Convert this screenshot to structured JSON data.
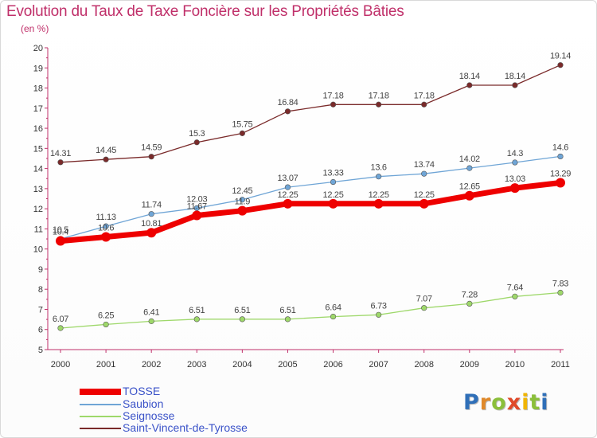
{
  "header": {
    "title": "Evolution du Taux de Taxe Foncière sur les Propriétés Bâties",
    "unit": "(en %)"
  },
  "logo": {
    "text": "Proxiti",
    "letter_colors": [
      "#2f6fb8",
      "#e0892a",
      "#8bbf3a",
      "#e04a2a",
      "#f0b400",
      "#8bbf3a",
      "#2f6fb8"
    ]
  },
  "chart_data": {
    "type": "line",
    "x": [
      "2000",
      "2001",
      "2002",
      "2003",
      "2004",
      "2005",
      "2006",
      "2007",
      "2008",
      "2009",
      "2010",
      "2011"
    ],
    "ylim": [
      5,
      20
    ],
    "yticks": [
      "5",
      "6",
      "7",
      "8",
      "9",
      "10",
      "11",
      "12",
      "13",
      "14",
      "15",
      "16",
      "17",
      "18",
      "19",
      "20"
    ],
    "grid": false,
    "legend_position": "bottom-left",
    "series": [
      {
        "name": "Saint-Vincent-de-Tyrosse",
        "color": "#7a2a2a",
        "values": [
          14.31,
          14.45,
          14.59,
          15.3,
          15.75,
          16.84,
          17.18,
          17.18,
          17.18,
          18.14,
          18.14,
          19.14
        ],
        "labels": [
          "14.31",
          "14.45",
          "14.59",
          "15.3",
          "15.75",
          "16.84",
          "17.18",
          "17.18",
          "17.18",
          "18.14",
          "18.14",
          "19.14"
        ]
      },
      {
        "name": "Saubion",
        "color": "#6fa5d6",
        "values": [
          10.5,
          11.13,
          11.74,
          12.03,
          12.45,
          13.07,
          13.33,
          13.6,
          13.74,
          14.02,
          14.3,
          14.6
        ],
        "labels": [
          "10.5",
          "11.13",
          "11.74",
          "12.03",
          "12.45",
          "13.07",
          "13.33",
          "13.6",
          "13.74",
          "14.02",
          "14.3",
          "14.6"
        ]
      },
      {
        "name": "Seignosse",
        "color": "#9ed86a",
        "values": [
          6.07,
          6.25,
          6.41,
          6.51,
          6.51,
          6.51,
          6.64,
          6.73,
          7.07,
          7.28,
          7.64,
          7.83
        ],
        "labels": [
          "6.07",
          "6.25",
          "6.41",
          "6.51",
          "6.51",
          "6.51",
          "6.64",
          "6.73",
          "7.07",
          "7.28",
          "7.64",
          "7.83"
        ]
      },
      {
        "name": "TOSSE",
        "color": "#ee0000",
        "values": [
          10.4,
          10.6,
          10.81,
          11.67,
          11.9,
          12.25,
          12.25,
          12.25,
          12.25,
          12.65,
          13.03,
          13.29
        ],
        "labels": [
          "10.4",
          "10.6",
          "10.81",
          "11.67",
          "11.9",
          "12.25",
          "12.25",
          "12.25",
          "12.25",
          "12.65",
          "13.03",
          "13.29"
        ]
      }
    ]
  },
  "legend": {
    "items": [
      {
        "label": "TOSSE",
        "color": "#ee0000",
        "thickness": 8
      },
      {
        "label": "Saubion",
        "color": "#6fa5d6",
        "thickness": 2
      },
      {
        "label": "Seignosse",
        "color": "#9ed86a",
        "thickness": 2
      },
      {
        "label": "Saint-Vincent-de-Tyrosse",
        "color": "#7a2a2a",
        "thickness": 2
      }
    ]
  }
}
